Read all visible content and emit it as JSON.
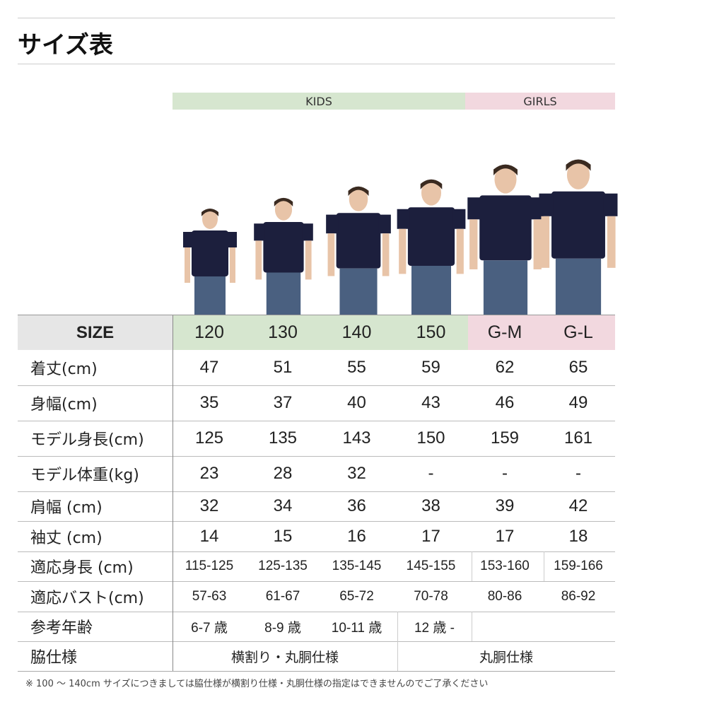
{
  "title": "サイズ表",
  "groups": {
    "kids": "KIDS",
    "girls": "GIRLS"
  },
  "colors": {
    "kids": "#d6e6cf",
    "girls": "#f2d8df",
    "size_header": "#e6e6e6",
    "shirt": "#1c1f3d",
    "jeans": "#4a6080"
  },
  "size_label": "SIZE",
  "sizes": [
    "120",
    "130",
    "140",
    "150",
    "G-M",
    "G-L"
  ],
  "rows": [
    {
      "label": "着丈(cm)",
      "values": [
        "47",
        "51",
        "55",
        "59",
        "62",
        "65"
      ]
    },
    {
      "label": "身幅(cm)",
      "values": [
        "35",
        "37",
        "40",
        "43",
        "46",
        "49"
      ]
    },
    {
      "label": "モデル身長(cm)",
      "values": [
        "125",
        "135",
        "143",
        "150",
        "159",
        "161"
      ]
    },
    {
      "label": "モデル体重(kg)",
      "values": [
        "23",
        "28",
        "32",
        "-",
        "-",
        "-"
      ]
    },
    {
      "label": "肩幅 (cm)",
      "values": [
        "32",
        "34",
        "36",
        "38",
        "39",
        "42"
      ]
    },
    {
      "label": "袖丈 (cm)",
      "values": [
        "14",
        "15",
        "16",
        "17",
        "17",
        "18"
      ]
    },
    {
      "label": "適応身長 (cm)",
      "values": [
        "115-125",
        "125-135",
        "135-145",
        "145-155",
        "153-160",
        "159-166"
      ]
    },
    {
      "label": "適応バスト(cm)",
      "values": [
        "57-63",
        "61-67",
        "65-72",
        "70-78",
        "80-86",
        "86-92"
      ]
    },
    {
      "label": "参考年齢",
      "values": [
        "6-7 歳",
        "8-9 歳",
        "10-11 歳",
        "12 歳 -"
      ]
    },
    {
      "label": "脇仕様",
      "values": [
        "横割り・丸胴仕様",
        "丸胴仕様"
      ]
    }
  ],
  "note": "※ 100 〜 140cm サイズにつきましては脇仕様が横割り仕様・丸胴仕様の指定はできませんのでご了承ください"
}
